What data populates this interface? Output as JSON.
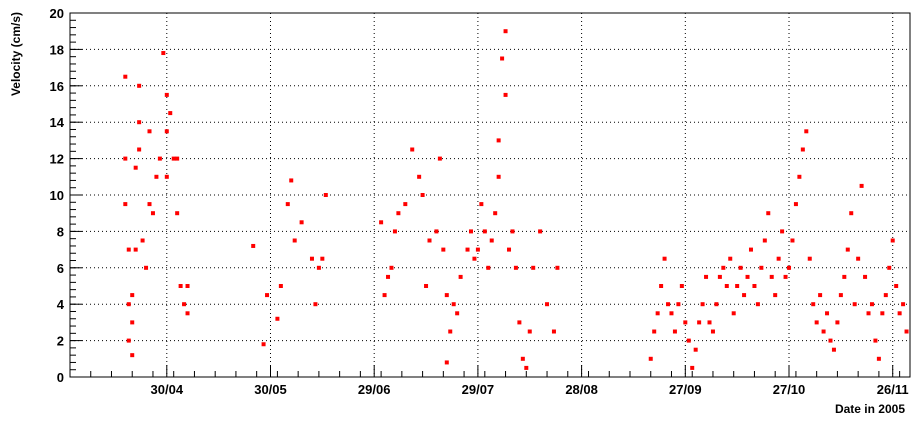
{
  "chart_data": {
    "type": "scatter",
    "title": "",
    "xlabel": "Date in 2005",
    "ylabel": "Velocity (cm/s)",
    "ylim": [
      0,
      20
    ],
    "xlim": [
      "2005-04-02",
      "2005-12-01"
    ],
    "grid": true,
    "point_color": "#ff0000",
    "x_ticks": [
      {
        "date": "2005-04-30",
        "label": "30/04"
      },
      {
        "date": "2005-05-30",
        "label": "30/05"
      },
      {
        "date": "2005-06-29",
        "label": "29/06"
      },
      {
        "date": "2005-07-29",
        "label": "29/07"
      },
      {
        "date": "2005-08-28",
        "label": "28/08"
      },
      {
        "date": "2005-09-27",
        "label": "27/09"
      },
      {
        "date": "2005-10-27",
        "label": "27/10"
      },
      {
        "date": "2005-11-26",
        "label": "26/11"
      }
    ],
    "y_ticks": [
      0,
      2,
      4,
      6,
      8,
      10,
      12,
      14,
      16,
      18,
      20
    ],
    "series": [
      {
        "x": [
          "2005-04-18",
          "2005-04-18",
          "2005-04-18",
          "2005-04-19",
          "2005-04-19",
          "2005-04-19",
          "2005-04-20",
          "2005-04-20",
          "2005-04-20",
          "2005-04-21",
          "2005-04-21",
          "2005-04-22",
          "2005-04-22",
          "2005-04-22",
          "2005-04-23",
          "2005-04-24",
          "2005-04-25",
          "2005-04-25",
          "2005-04-26",
          "2005-04-27",
          "2005-04-28",
          "2005-04-29",
          "2005-04-30",
          "2005-04-30",
          "2005-04-30",
          "2005-05-01",
          "2005-05-02",
          "2005-05-03",
          "2005-05-03",
          "2005-05-04",
          "2005-05-05",
          "2005-05-06",
          "2005-05-06",
          "2005-05-25",
          "2005-05-28",
          "2005-05-29",
          "2005-06-01",
          "2005-06-02",
          "2005-06-04",
          "2005-06-05",
          "2005-06-06",
          "2005-06-08",
          "2005-06-11",
          "2005-06-12",
          "2005-06-13",
          "2005-06-14",
          "2005-06-15",
          "2005-07-01",
          "2005-07-02",
          "2005-07-03",
          "2005-07-04",
          "2005-07-05",
          "2005-07-06",
          "2005-07-08",
          "2005-07-10",
          "2005-07-12",
          "2005-07-13",
          "2005-07-14",
          "2005-07-15",
          "2005-07-17",
          "2005-07-18",
          "2005-07-19",
          "2005-07-20",
          "2005-07-20",
          "2005-07-21",
          "2005-07-22",
          "2005-07-23",
          "2005-07-24",
          "2005-07-26",
          "2005-07-27",
          "2005-07-28",
          "2005-07-29",
          "2005-07-30",
          "2005-07-31",
          "2005-08-01",
          "2005-08-02",
          "2005-08-03",
          "2005-08-04",
          "2005-08-04",
          "2005-08-05",
          "2005-08-06",
          "2005-08-06",
          "2005-08-07",
          "2005-08-08",
          "2005-08-09",
          "2005-08-10",
          "2005-08-11",
          "2005-08-12",
          "2005-08-13",
          "2005-08-14",
          "2005-08-16",
          "2005-08-18",
          "2005-08-20",
          "2005-08-21",
          "2005-09-17",
          "2005-09-18",
          "2005-09-19",
          "2005-09-20",
          "2005-09-21",
          "2005-09-22",
          "2005-09-23",
          "2005-09-24",
          "2005-09-25",
          "2005-09-26",
          "2005-09-27",
          "2005-09-28",
          "2005-09-29",
          "2005-09-30",
          "2005-10-01",
          "2005-10-02",
          "2005-10-03",
          "2005-10-04",
          "2005-10-05",
          "2005-10-06",
          "2005-10-07",
          "2005-10-08",
          "2005-10-09",
          "2005-10-10",
          "2005-10-11",
          "2005-10-12",
          "2005-10-13",
          "2005-10-14",
          "2005-10-15",
          "2005-10-16",
          "2005-10-17",
          "2005-10-18",
          "2005-10-19",
          "2005-10-20",
          "2005-10-21",
          "2005-10-22",
          "2005-10-23",
          "2005-10-24",
          "2005-10-25",
          "2005-10-26",
          "2005-10-27",
          "2005-10-28",
          "2005-10-29",
          "2005-10-30",
          "2005-10-31",
          "2005-11-01",
          "2005-11-02",
          "2005-11-03",
          "2005-11-04",
          "2005-11-05",
          "2005-11-06",
          "2005-11-07",
          "2005-11-08",
          "2005-11-09",
          "2005-11-10",
          "2005-11-11",
          "2005-11-12",
          "2005-11-13",
          "2005-11-14",
          "2005-11-15",
          "2005-11-16",
          "2005-11-17",
          "2005-11-18",
          "2005-11-19",
          "2005-11-20",
          "2005-11-21",
          "2005-11-22",
          "2005-11-23",
          "2005-11-24",
          "2005-11-25",
          "2005-11-26",
          "2005-11-27",
          "2005-11-28",
          "2005-11-29",
          "2005-11-30"
        ],
        "y": [
          16.5,
          12.0,
          9.5,
          7.0,
          4.0,
          2.0,
          1.2,
          3.0,
          4.5,
          7.0,
          11.5,
          14.0,
          16.0,
          12.5,
          7.5,
          6.0,
          9.5,
          13.5,
          9.0,
          11.0,
          12.0,
          17.8,
          15.5,
          11.0,
          13.5,
          14.5,
          12.0,
          9.0,
          12.0,
          5.0,
          4.0,
          3.5,
          5.0,
          7.2,
          1.8,
          4.5,
          3.2,
          5.0,
          9.5,
          10.8,
          7.5,
          8.5,
          6.5,
          4.0,
          6.0,
          6.5,
          10.0,
          8.5,
          4.5,
          5.5,
          6.0,
          8.0,
          9.0,
          9.5,
          12.5,
          11.0,
          10.0,
          5.0,
          7.5,
          8.0,
          12.0,
          7.0,
          4.5,
          0.8,
          2.5,
          4.0,
          3.5,
          5.5,
          7.0,
          8.0,
          6.5,
          7.0,
          9.5,
          8.0,
          6.0,
          7.5,
          9.0,
          11.0,
          13.0,
          17.5,
          19.0,
          15.5,
          7.0,
          8.0,
          6.0,
          3.0,
          1.0,
          0.5,
          2.5,
          6.0,
          8.0,
          4.0,
          2.5,
          6.0,
          1.0,
          2.5,
          3.5,
          5.0,
          6.5,
          4.0,
          3.5,
          2.5,
          4.0,
          5.0,
          3.0,
          2.0,
          0.5,
          1.5,
          3.0,
          4.0,
          5.5,
          3.0,
          2.5,
          4.0,
          5.5,
          6.0,
          5.0,
          6.5,
          3.5,
          5.0,
          6.0,
          4.5,
          5.5,
          7.0,
          5.0,
          4.0,
          6.0,
          7.5,
          9.0,
          5.5,
          4.5,
          6.5,
          8.0,
          5.5,
          6.0,
          7.5,
          9.5,
          11.0,
          12.5,
          13.5,
          6.5,
          4.0,
          3.0,
          4.5,
          2.5,
          3.5,
          2.0,
          1.5,
          3.0,
          4.5,
          5.5,
          7.0,
          9.0,
          4.0,
          6.5,
          10.5,
          5.5,
          3.5,
          4.0,
          2.0,
          1.0,
          3.5,
          4.5,
          6.0,
          7.5,
          5.0,
          3.5,
          4.0,
          2.5
        ]
      }
    ]
  }
}
